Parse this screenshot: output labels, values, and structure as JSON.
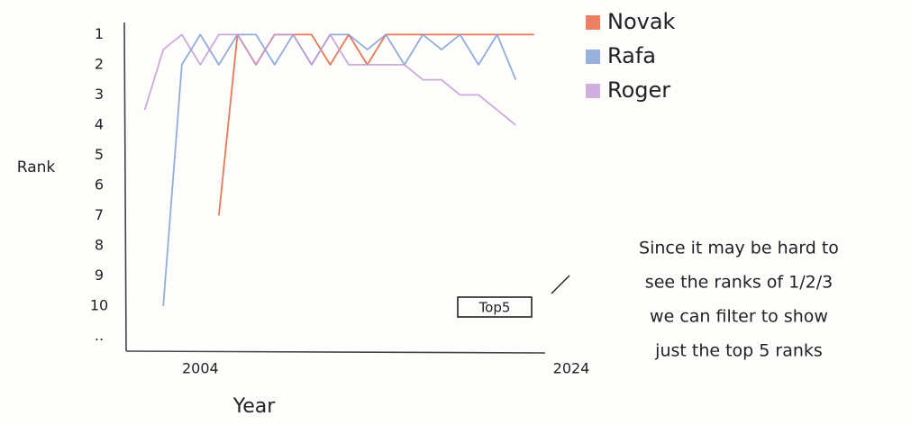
{
  "chart_data": {
    "type": "line",
    "y_label": "Rank",
    "x_label": "Year",
    "x": [
      2001,
      2002,
      2003,
      2004,
      2005,
      2006,
      2007,
      2008,
      2009,
      2010,
      2011,
      2012,
      2013,
      2014,
      2015,
      2016,
      2017,
      2018,
      2019,
      2020,
      2021,
      2022
    ],
    "series": [
      {
        "name": "Novak",
        "color": "#e8603c",
        "values": [
          null,
          null,
          null,
          null,
          7,
          1,
          2,
          1,
          1,
          1,
          2,
          1,
          2,
          1,
          1,
          1,
          1,
          1,
          1,
          1,
          1,
          1
        ]
      },
      {
        "name": "Rafa",
        "color": "#7f9fd6",
        "values": [
          null,
          10,
          2,
          1,
          2,
          1,
          1,
          2,
          1,
          2,
          1,
          1,
          1.5,
          1,
          2,
          1,
          1.5,
          1,
          2,
          1,
          2.5,
          null
        ]
      },
      {
        "name": "Roger",
        "color": "#c49ad6",
        "values": [
          3.5,
          1.5,
          1,
          2,
          1,
          1,
          2,
          1,
          1,
          2,
          1,
          2,
          2,
          2,
          2,
          2.5,
          2.5,
          3,
          3,
          3.5,
          4,
          null
        ]
      }
    ],
    "xlim": [
      2000,
      2024
    ],
    "xticks": [
      {
        "value": 2004,
        "label": "2004"
      },
      2024
    ],
    "ylim": [
      0.6,
      11.5
    ],
    "y_reversed": true,
    "yticks": [
      1,
      2,
      3,
      4,
      5,
      6,
      7,
      8,
      9,
      10,
      {
        "value": 11,
        "label": ".."
      }
    ],
    "grid": false,
    "filter_button": "Top5",
    "annotation": [
      "Since it may be hard to",
      "see the ranks of 1/2/3",
      "we can filter to show",
      "just the top 5 ranks"
    ]
  }
}
